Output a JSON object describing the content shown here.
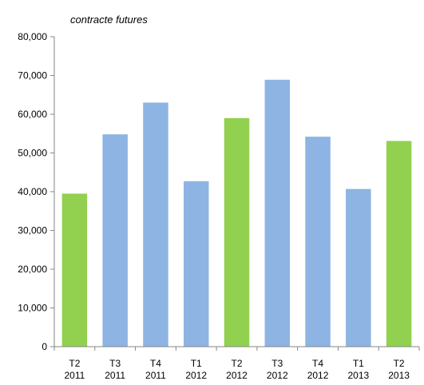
{
  "chart_data": {
    "type": "bar",
    "unit_label": "contracte futures",
    "categories": [
      [
        "T2",
        "2011"
      ],
      [
        "T3",
        "2011"
      ],
      [
        "T4",
        "2011"
      ],
      [
        "T1",
        "2012"
      ],
      [
        "T2",
        "2012"
      ],
      [
        "T3",
        "2012"
      ],
      [
        "T4",
        "2012"
      ],
      [
        "T1",
        "2013"
      ],
      [
        "T2",
        "2013"
      ]
    ],
    "values": [
      39500,
      54800,
      63000,
      42700,
      59000,
      68900,
      54200,
      40700,
      53100
    ],
    "bar_colors": [
      "#92d050",
      "#8db4e2",
      "#8db4e2",
      "#8db4e2",
      "#92d050",
      "#8db4e2",
      "#8db4e2",
      "#8db4e2",
      "#92d050"
    ],
    "ylim": [
      0,
      80000
    ],
    "yticks": [
      0,
      10000,
      20000,
      30000,
      40000,
      50000,
      60000,
      70000,
      80000
    ],
    "ytick_labels": [
      "0",
      "10,000",
      "20,000",
      "30,000",
      "40,000",
      "50,000",
      "60,000",
      "70,000",
      "80,000"
    ],
    "grid": false,
    "legend": "none"
  }
}
